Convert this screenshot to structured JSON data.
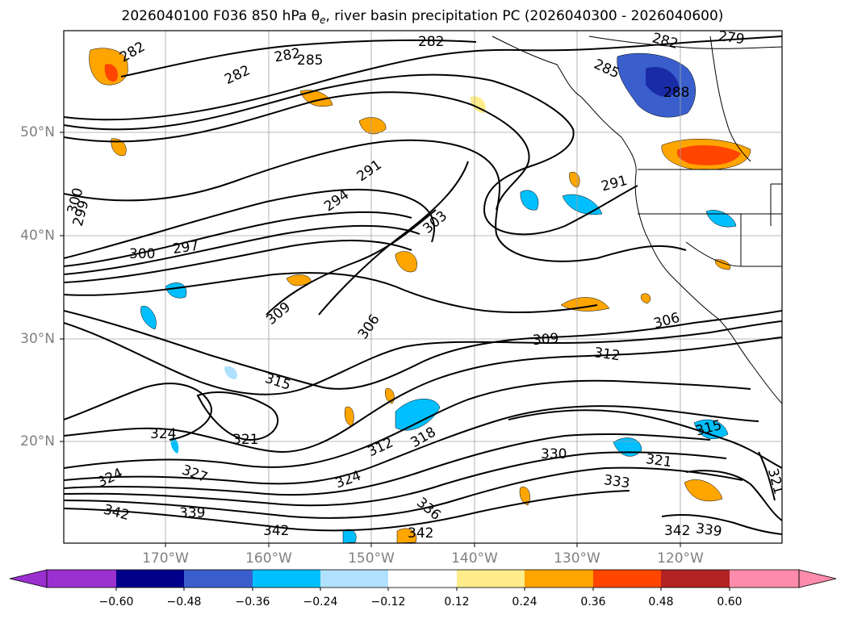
{
  "title_prefix": "2026040100 F036 850 hPa ",
  "title_theta": "θ",
  "title_theta_sub": "e",
  "title_suffix": ", river basin precipitation PC (2026040300 - 2026040600)",
  "lat_labels": [
    "50°N",
    "40°N",
    "30°N",
    "20°N"
  ],
  "lon_labels": [
    "170°W",
    "160°W",
    "150°W",
    "140°W",
    "130°W",
    "120°W"
  ],
  "contour_labels": [
    "282",
    "282",
    "282",
    "282",
    "285",
    "282",
    "279",
    "285",
    "288",
    "291",
    "291",
    "294",
    "303",
    "300",
    "300",
    "297",
    "299",
    "309",
    "306",
    "306",
    "309",
    "312",
    "315",
    "324",
    "321",
    "312",
    "318",
    "330",
    "315",
    "324",
    "327",
    "324",
    "336",
    "321",
    "333",
    "321",
    "342",
    "339",
    "342",
    "342",
    "342",
    "339"
  ],
  "colorbar": {
    "ticks": [
      "−0.60",
      "−0.48",
      "−0.36",
      "−0.24",
      "−0.12",
      "0.12",
      "0.24",
      "0.36",
      "0.48",
      "0.60"
    ],
    "colors": [
      "#9b30d0",
      "#00008b",
      "#3a5fcd",
      "#00bfff",
      "#b0e2ff",
      "#ffffff",
      "#ffec8b",
      "#ffa500",
      "#ff4500",
      "#b22222",
      "#ff8bac"
    ]
  }
}
